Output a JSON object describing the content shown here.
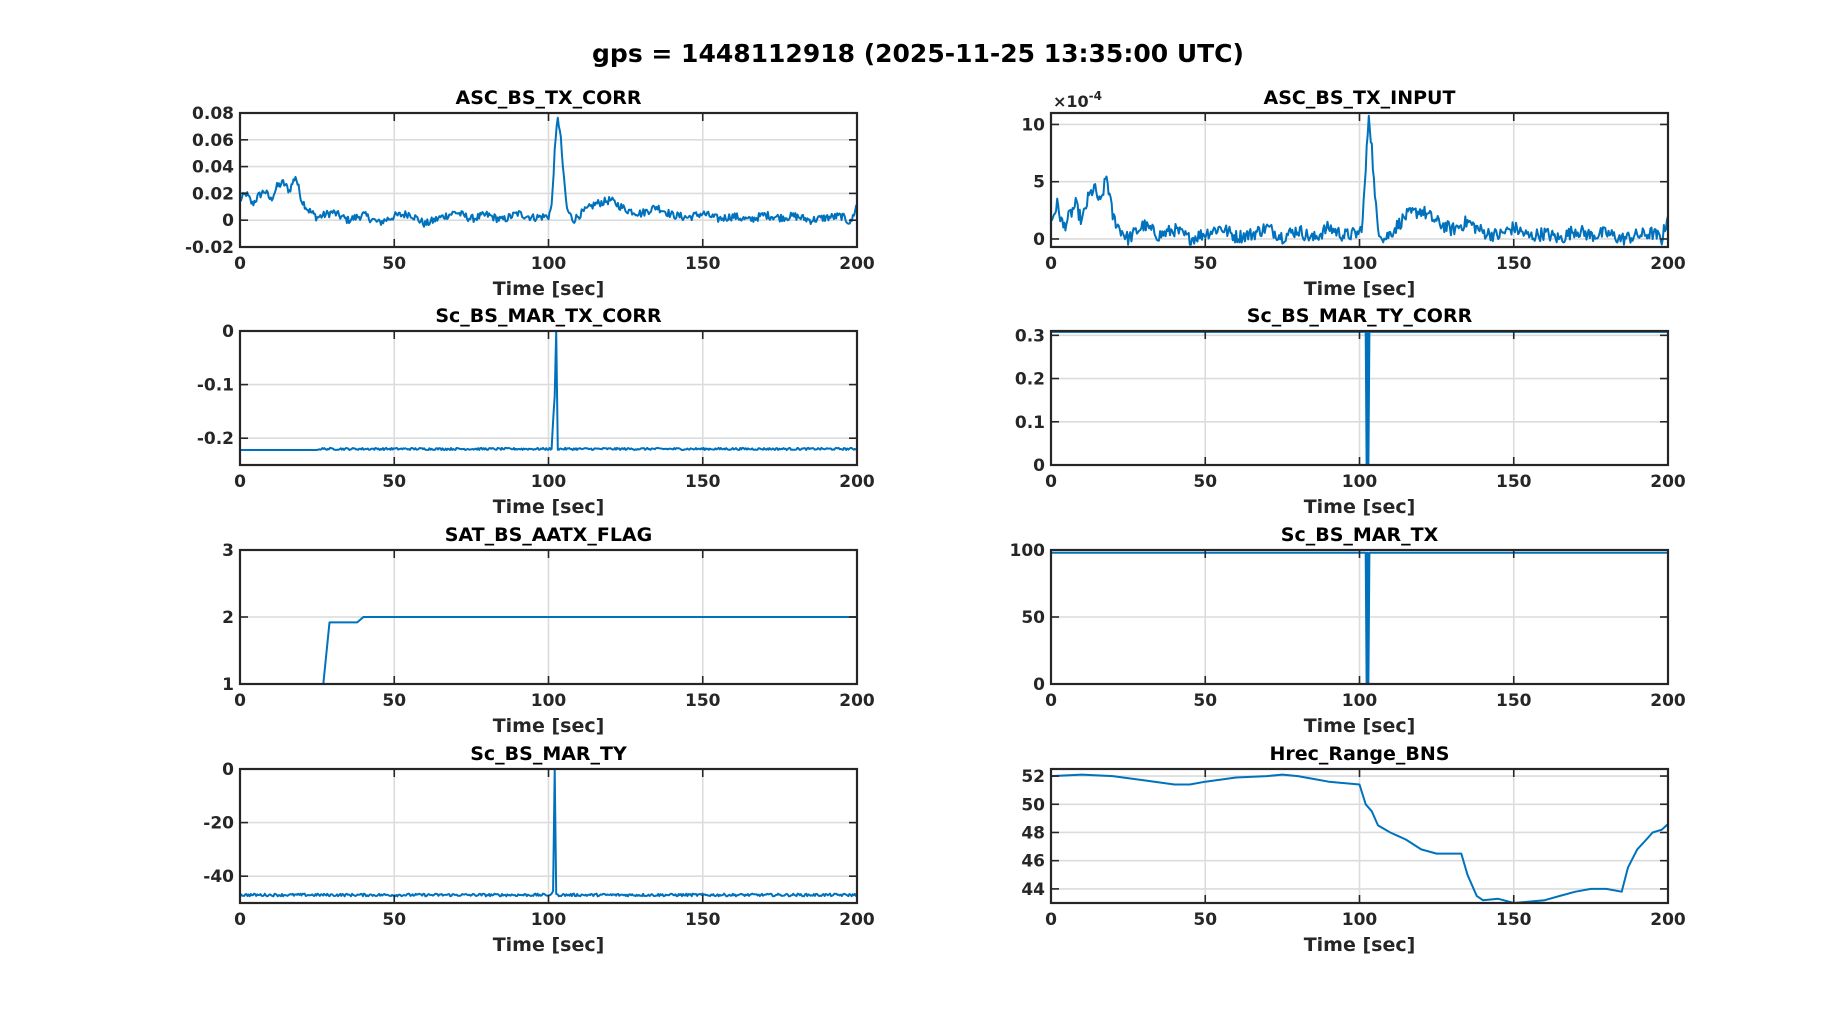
{
  "figure": {
    "title": "gps = 1448112918 (2025-11-25 13:35:00 UTC)",
    "line_color": "#0072BD",
    "grid": true
  },
  "chart_data": [
    {
      "type": "line",
      "title": "ASC_BS_TX_CORR",
      "xlabel": "Time [sec]",
      "ylabel": "",
      "xlim": [
        0,
        200
      ],
      "ylim": [
        -0.02,
        0.08
      ],
      "xticks": [
        0,
        50,
        100,
        150,
        200
      ],
      "yticks": [
        -0.02,
        0,
        0.02,
        0.04,
        0.06,
        0.08
      ],
      "yticklabels": [
        "-0.02",
        "0",
        "0.02",
        "0.04",
        "0.06",
        "0.08"
      ],
      "x": [
        0,
        2,
        4,
        6,
        8,
        10,
        12,
        14,
        16,
        18,
        20,
        22,
        25,
        30,
        35,
        40,
        45,
        50,
        55,
        60,
        65,
        70,
        75,
        80,
        85,
        90,
        95,
        100,
        101,
        102,
        103,
        104,
        105,
        106,
        108,
        110,
        115,
        120,
        125,
        130,
        135,
        140,
        145,
        150,
        155,
        160,
        165,
        170,
        175,
        180,
        185,
        190,
        195,
        198,
        200
      ],
      "y": [
        0.015,
        0.02,
        0.012,
        0.018,
        0.022,
        0.015,
        0.025,
        0.028,
        0.022,
        0.033,
        0.015,
        0.008,
        0.002,
        0.006,
        0.0,
        0.004,
        -0.002,
        0.003,
        0.005,
        -0.003,
        0.002,
        0.006,
        0.001,
        0.004,
        0.0,
        0.005,
        0.002,
        0.003,
        0.01,
        0.05,
        0.078,
        0.06,
        0.03,
        0.008,
        0.0,
        0.004,
        0.012,
        0.015,
        0.008,
        0.005,
        0.01,
        0.004,
        0.002,
        0.005,
        0.001,
        0.003,
        0.0,
        0.004,
        0.002,
        0.003,
        0.0,
        0.002,
        0.003,
        -0.002,
        0.012
      ],
      "wiggle": 0.003
    },
    {
      "type": "line",
      "title": "ASC_BS_TX_INPUT",
      "xlabel": "Time [sec]",
      "ylabel": "",
      "scale_exponent": "-4",
      "xlim": [
        0,
        200
      ],
      "ylim": [
        -0.7,
        11
      ],
      "xticks": [
        0,
        50,
        100,
        150,
        200
      ],
      "yticks": [
        0,
        5,
        10
      ],
      "yticklabels": [
        "0",
        "5",
        "10"
      ],
      "x": [
        0,
        2,
        4,
        6,
        8,
        10,
        12,
        14,
        16,
        18,
        20,
        22,
        25,
        30,
        35,
        40,
        45,
        50,
        55,
        60,
        65,
        70,
        75,
        80,
        85,
        90,
        95,
        100,
        101,
        102,
        103,
        104,
        105,
        106,
        108,
        110,
        115,
        120,
        125,
        130,
        135,
        140,
        145,
        150,
        155,
        160,
        165,
        170,
        175,
        180,
        185,
        190,
        195,
        198,
        200
      ],
      "y": [
        1.5,
        3.0,
        1.0,
        2.0,
        3.0,
        1.5,
        3.5,
        4.5,
        3.0,
        5.5,
        2.0,
        1.0,
        0.0,
        1.2,
        0.3,
        0.8,
        0.0,
        0.5,
        1.0,
        0.2,
        0.4,
        1.0,
        0.2,
        0.8,
        0.0,
        1.0,
        0.3,
        0.5,
        1.5,
        6.0,
        11.0,
        8.0,
        3.5,
        1.0,
        0.0,
        0.5,
        2.0,
        2.5,
        1.5,
        0.8,
        1.5,
        0.6,
        0.3,
        1.0,
        0.2,
        0.5,
        0.0,
        0.8,
        0.3,
        0.5,
        0.0,
        0.3,
        0.5,
        0.0,
        2.0
      ],
      "wiggle": 0.6,
      "floor": -0.5
    },
    {
      "type": "line",
      "title": "Sc_BS_MAR_TX_CORR",
      "xlabel": "Time [sec]",
      "ylabel": "",
      "xlim": [
        0,
        200
      ],
      "ylim": [
        -0.25,
        0
      ],
      "xticks": [
        0,
        50,
        100,
        150,
        200
      ],
      "yticks": [
        -0.2,
        -0.1,
        0
      ],
      "yticklabels": [
        "-0.2",
        "-0.1",
        "0"
      ],
      "x": [
        0,
        25,
        26,
        100,
        101,
        102,
        102.5,
        103,
        104,
        200
      ],
      "y": [
        -0.222,
        -0.222,
        -0.22,
        -0.22,
        -0.22,
        -0.12,
        0.0,
        -0.22,
        -0.22,
        -0.22
      ],
      "wiggle": 0.002,
      "wiggle_from_x": 26
    },
    {
      "type": "line",
      "title": "Sc_BS_MAR_TY_CORR",
      "xlabel": "Time [sec]",
      "ylabel": "",
      "xlim": [
        0,
        200
      ],
      "ylim": [
        0,
        0.31
      ],
      "xticks": [
        0,
        50,
        100,
        150,
        200
      ],
      "yticks": [
        0,
        0.1,
        0.2,
        0.3
      ],
      "yticklabels": [
        "0",
        "0.1",
        "0.2",
        "0.3"
      ],
      "x": [
        0,
        102,
        102.3,
        102.6,
        102.9,
        103.2,
        200
      ],
      "y": [
        0.308,
        0.308,
        0.0,
        0.308,
        0.0,
        0.308,
        0.308
      ]
    },
    {
      "type": "line",
      "title": "SAT_BS_AATX_FLAG",
      "xlabel": "Time [sec]",
      "ylabel": "",
      "xlim": [
        0,
        200
      ],
      "ylim": [
        1,
        3
      ],
      "xticks": [
        0,
        50,
        100,
        150,
        200
      ],
      "yticks": [
        1,
        2,
        3
      ],
      "yticklabels": [
        "1",
        "2",
        "3"
      ],
      "x": [
        0,
        27,
        29,
        38,
        40,
        200
      ],
      "y": [
        1,
        1,
        1.92,
        1.92,
        2,
        2
      ]
    },
    {
      "type": "line",
      "title": "Sc_BS_MAR_TX",
      "xlabel": "Time [sec]",
      "ylabel": "",
      "xlim": [
        0,
        200
      ],
      "ylim": [
        0,
        100
      ],
      "xticks": [
        0,
        50,
        100,
        150,
        200
      ],
      "yticks": [
        0,
        50,
        100
      ],
      "yticklabels": [
        "0",
        "50",
        "100"
      ],
      "x": [
        0,
        102,
        102.3,
        102.6,
        102.9,
        103.2,
        200
      ],
      "y": [
        98,
        98,
        0,
        98,
        0,
        98,
        98
      ]
    },
    {
      "type": "line",
      "title": "Sc_BS_MAR_TY",
      "xlabel": "Time [sec]",
      "ylabel": "",
      "xlim": [
        0,
        200
      ],
      "ylim": [
        -50,
        0
      ],
      "xticks": [
        0,
        50,
        100,
        150,
        200
      ],
      "yticks": [
        -40,
        -20,
        0
      ],
      "yticklabels": [
        "-40",
        "-20",
        "0"
      ],
      "x": [
        0,
        101,
        101.5,
        102,
        102.5,
        103,
        200
      ],
      "y": [
        -47,
        -47,
        -45,
        0,
        -47,
        -47,
        -47
      ],
      "wiggle": 0.5
    },
    {
      "type": "line",
      "title": "Hrec_Range_BNS",
      "xlabel": "Time [sec]",
      "ylabel": "",
      "xlim": [
        0,
        200
      ],
      "ylim": [
        43,
        52.5
      ],
      "xticks": [
        0,
        50,
        100,
        150,
        200
      ],
      "yticks": [
        44,
        46,
        48,
        50,
        52
      ],
      "yticklabels": [
        "44",
        "46",
        "48",
        "50",
        "52"
      ],
      "x": [
        0,
        10,
        20,
        30,
        40,
        45,
        50,
        60,
        70,
        75,
        80,
        85,
        90,
        95,
        100,
        102,
        104,
        106,
        110,
        115,
        120,
        125,
        130,
        133,
        135,
        138,
        140,
        145,
        150,
        155,
        160,
        165,
        170,
        175,
        180,
        185,
        187,
        190,
        193,
        195,
        198,
        200
      ],
      "y": [
        52,
        52.1,
        52,
        51.7,
        51.4,
        51.4,
        51.6,
        51.9,
        52.0,
        52.1,
        52.0,
        51.8,
        51.6,
        51.5,
        51.4,
        50.0,
        49.5,
        48.5,
        48.0,
        47.5,
        46.8,
        46.5,
        46.5,
        46.5,
        45.0,
        43.5,
        43.2,
        43.3,
        43.0,
        43.1,
        43.2,
        43.5,
        43.8,
        44.0,
        44.0,
        43.8,
        45.5,
        46.8,
        47.5,
        48.0,
        48.2,
        48.6
      ]
    }
  ]
}
